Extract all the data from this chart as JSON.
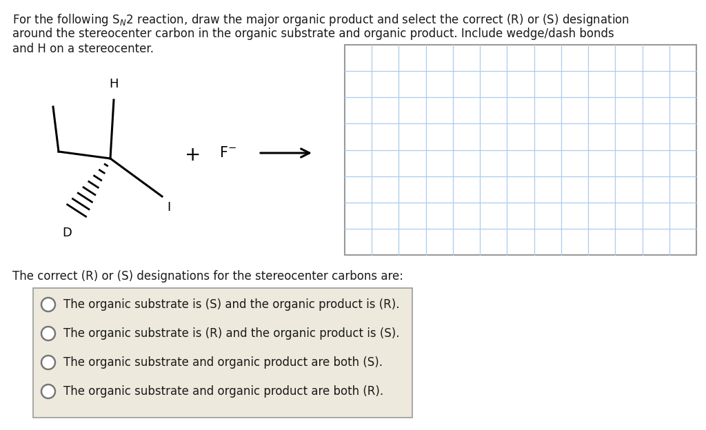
{
  "bg_color": "#ffffff",
  "font_color": "#1a1a1a",
  "grid_color": "#aaccee",
  "grid_border_color": "#999999",
  "grid_rows": 8,
  "grid_cols": 13,
  "option_box_color": "#ede9dc",
  "option_box_border": "#999999",
  "options": [
    "The organic substrate is (S) and the organic product is (R).",
    "The organic substrate is (R) and the organic product is (S).",
    "The organic substrate and organic product are both (S).",
    "The organic substrate and organic product are both (R)."
  ]
}
